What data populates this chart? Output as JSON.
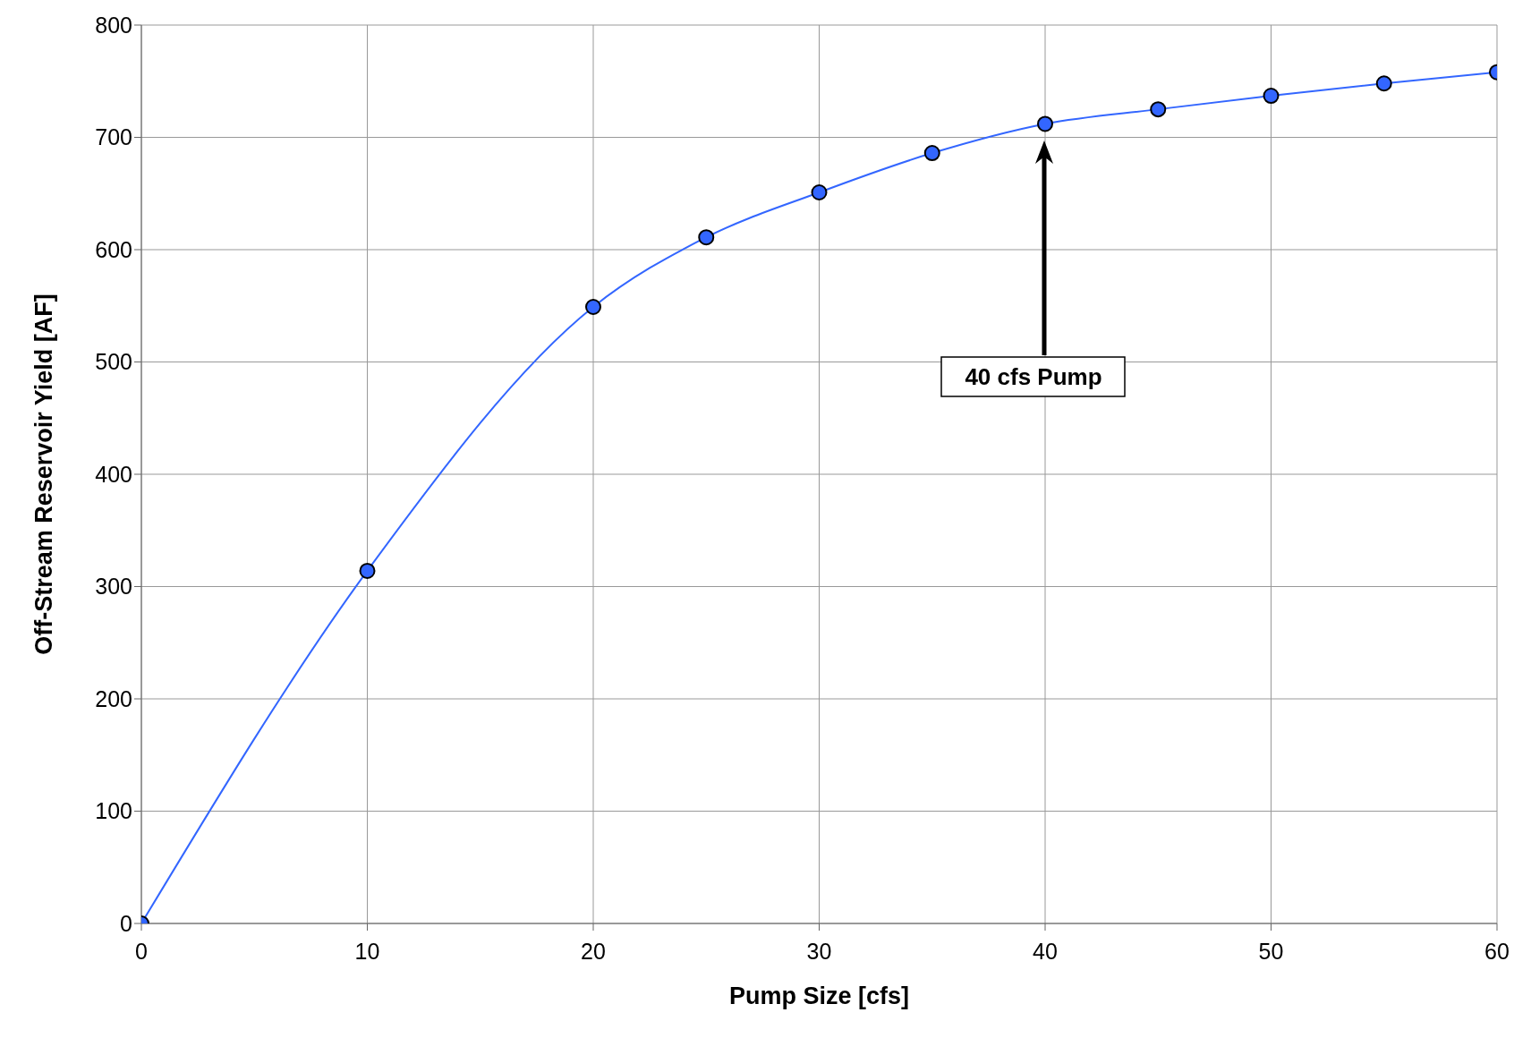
{
  "chart_data": {
    "type": "line",
    "xlabel": "Pump Size [cfs]",
    "ylabel": "Off-Stream Reservoir Yield [AF]",
    "x": [
      0,
      10,
      20,
      25,
      30,
      35,
      40,
      45,
      50,
      55,
      60
    ],
    "series": [
      {
        "color": "#3366ff",
        "values": [
          0,
          314,
          549,
          611,
          651,
          686,
          712,
          725,
          737,
          748,
          758
        ]
      }
    ],
    "xlim": [
      0,
      60
    ],
    "xticks": [
      0,
      10,
      20,
      30,
      40,
      50,
      60
    ],
    "ylim": [
      0,
      800
    ],
    "yticks": [
      0,
      100,
      200,
      300,
      400,
      500,
      600,
      700,
      800
    ],
    "grid": true,
    "marker": "circle",
    "line_style": "solid",
    "legend": false,
    "annotations": [
      "40 cfs Pump"
    ]
  }
}
